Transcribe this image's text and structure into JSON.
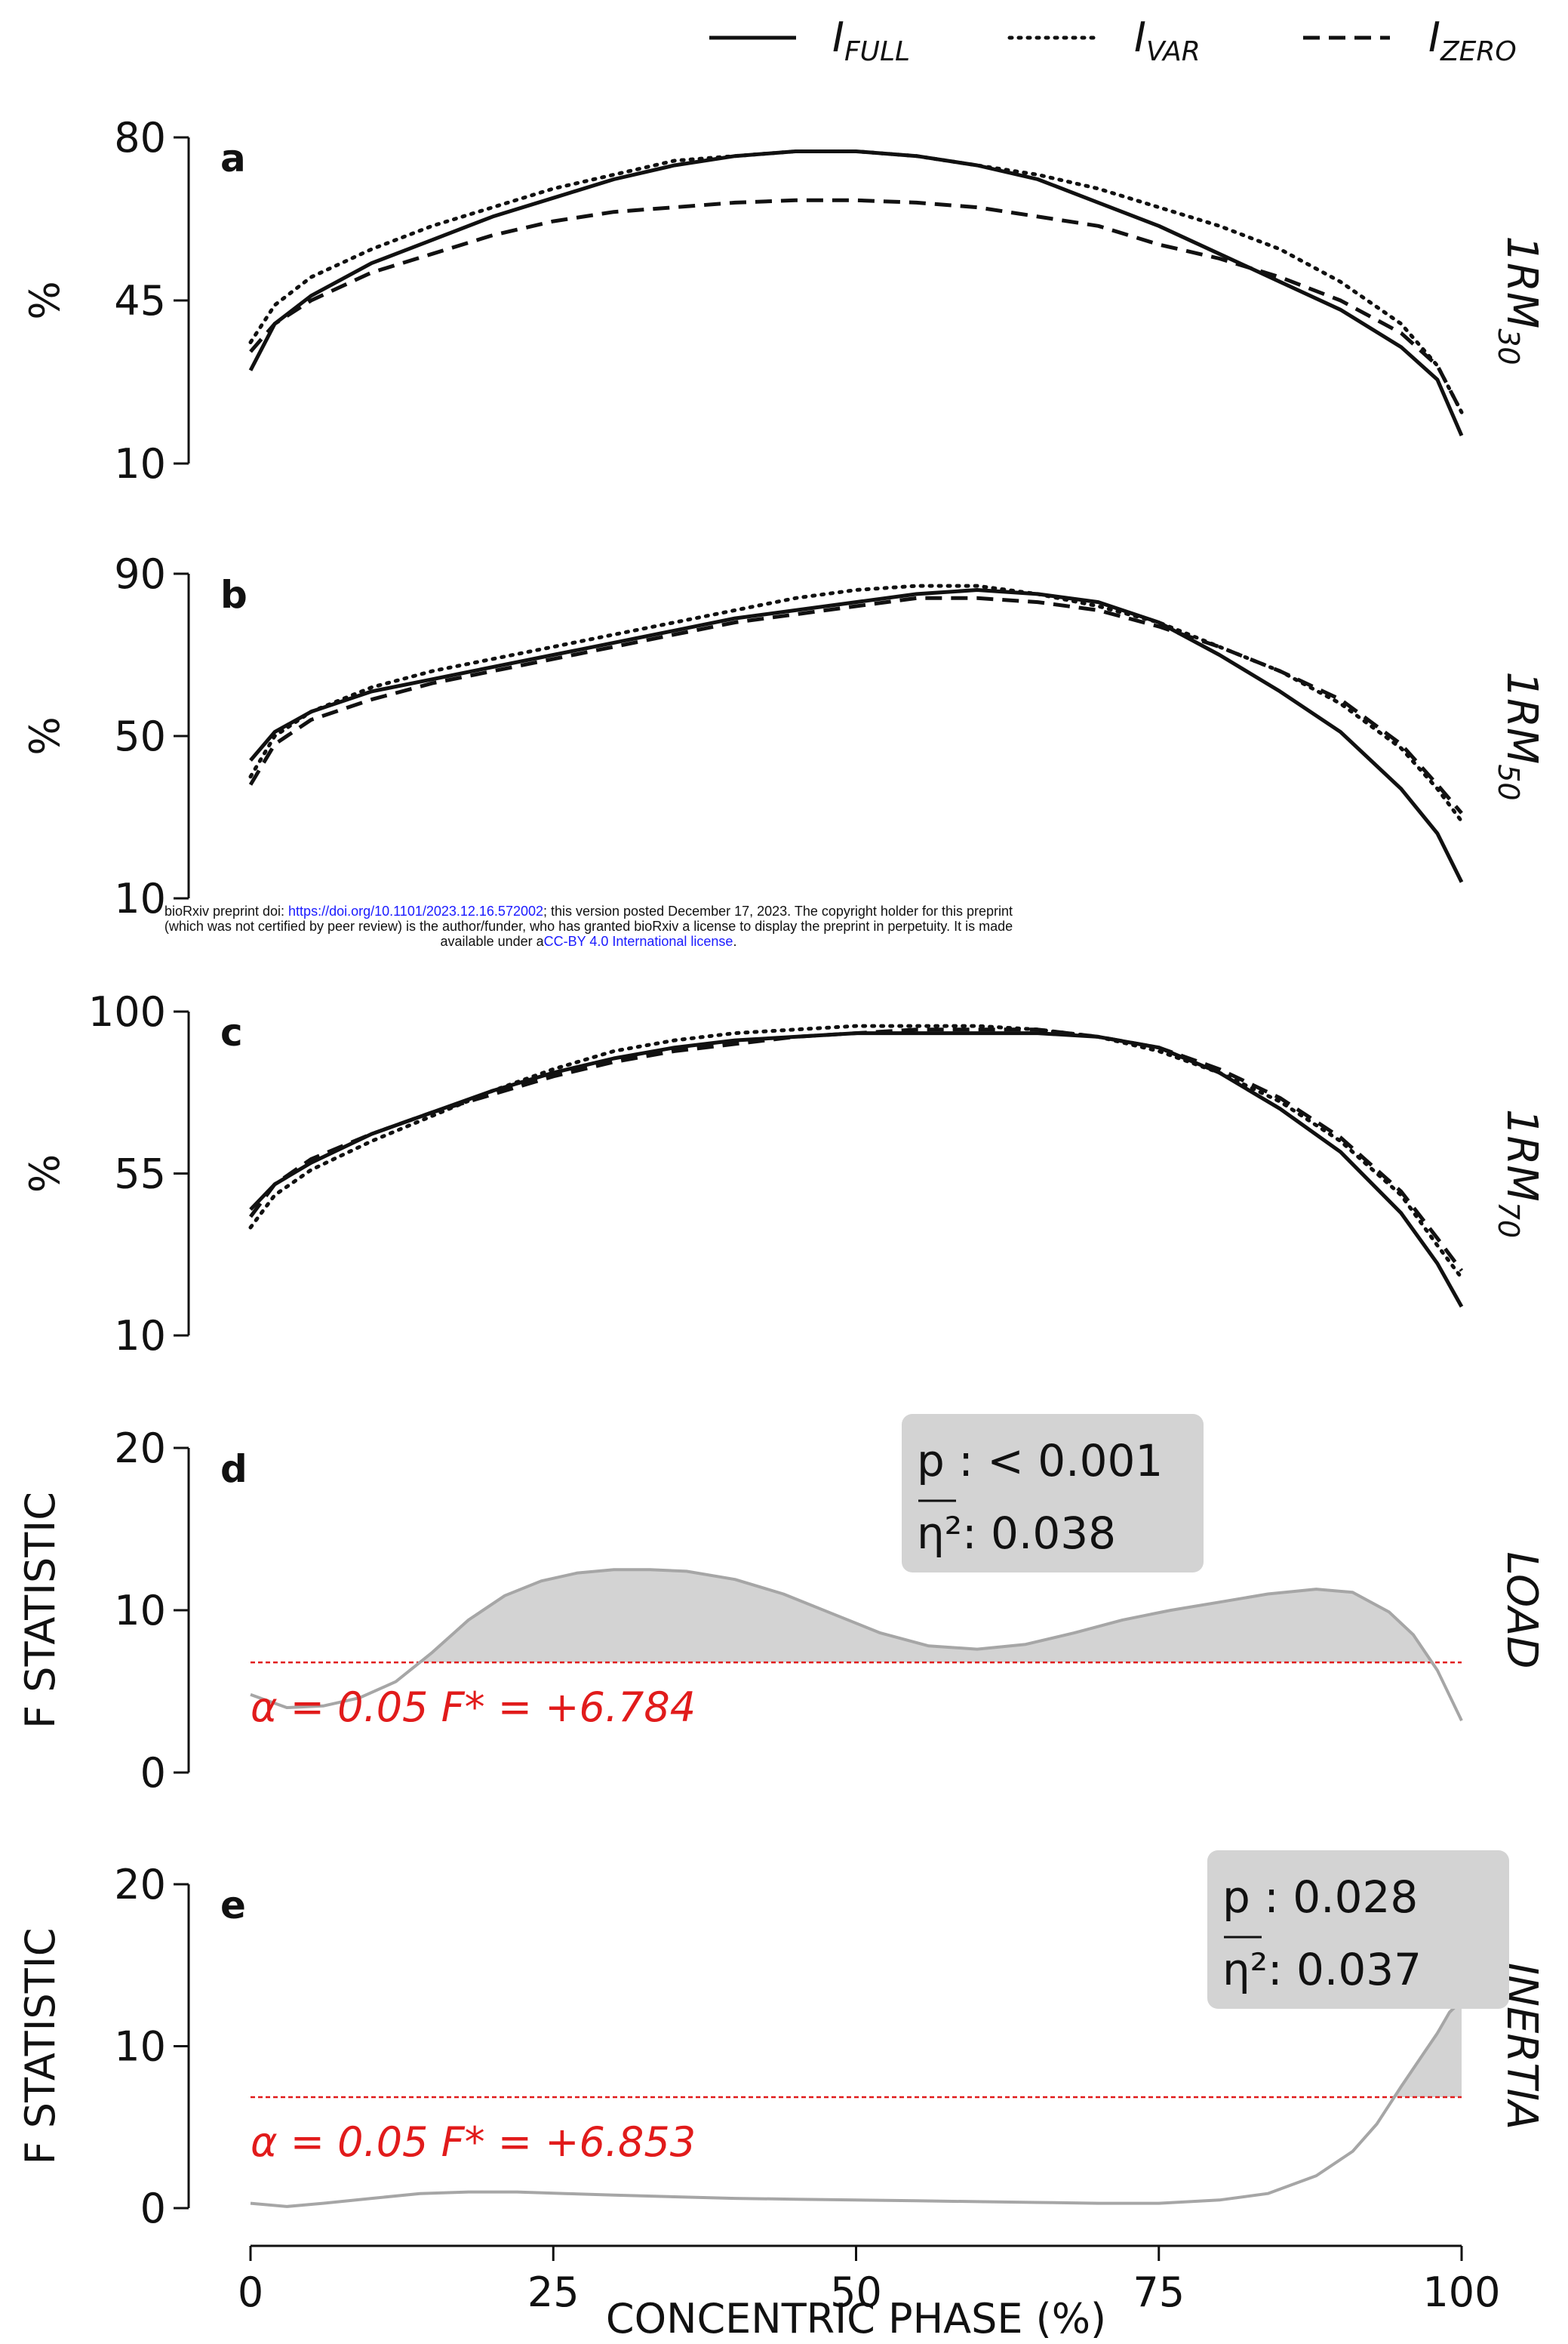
{
  "notice": {
    "line1_a": "bioRxiv preprint doi: ",
    "line1_link": "https://doi.org/10.1101/2023.12.16.572002",
    "line1_b": "; this version posted December 17, 2023. The copyright holder for this preprint",
    "line2": "(which was not certified by peer review) is the author/funder, who has granted bioRxiv a license to display the preprint in perpetuity. It is made",
    "line3_a": "available under a",
    "line3_link": "CC-BY 4.0 International license",
    "line3_b": "."
  },
  "colors": {
    "line": "#111111",
    "fstat": "#a6a6a6",
    "fill": "#d3d3d3",
    "threshold": "#e11b1b",
    "statbox": "#d3d3d3"
  },
  "chart_data": [
    {
      "type": "line",
      "panel": "a",
      "row_label": "1RM",
      "row_label_sub": "30",
      "ylabel": "%",
      "ylim": [
        10,
        80
      ],
      "yticks": [
        10,
        45,
        80
      ],
      "xlim": [
        0,
        100
      ],
      "xticks": [
        0,
        25,
        50,
        75,
        100
      ],
      "series": [
        {
          "name_main": "I",
          "name_sub": "FULL",
          "style": "solid",
          "x": [
            0,
            2,
            5,
            10,
            15,
            20,
            25,
            30,
            35,
            40,
            45,
            50,
            55,
            60,
            65,
            70,
            75,
            80,
            85,
            90,
            95,
            98,
            100
          ],
          "y": [
            30,
            40,
            46,
            53,
            58,
            63,
            67,
            71,
            74,
            76,
            77,
            77,
            76,
            74,
            71,
            66,
            61,
            55,
            49,
            43,
            35,
            28,
            16
          ]
        },
        {
          "name_main": "I",
          "name_sub": "VAR",
          "style": "dotted",
          "x": [
            0,
            2,
            5,
            10,
            15,
            20,
            25,
            30,
            35,
            40,
            45,
            50,
            55,
            60,
            65,
            70,
            75,
            80,
            85,
            90,
            95,
            98,
            100
          ],
          "y": [
            36,
            44,
            50,
            56,
            61,
            65,
            69,
            72,
            75,
            76,
            77,
            77,
            76,
            74,
            72,
            69,
            65,
            61,
            56,
            49,
            40,
            31,
            21
          ]
        },
        {
          "name_main": "I",
          "name_sub": "ZERO",
          "style": "dashed",
          "x": [
            0,
            2,
            5,
            10,
            15,
            20,
            25,
            30,
            35,
            40,
            45,
            50,
            55,
            60,
            65,
            70,
            75,
            80,
            85,
            90,
            95,
            98,
            100
          ],
          "y": [
            34,
            40,
            45,
            51,
            55,
            59,
            62,
            64,
            65,
            66,
            66.5,
            66.5,
            66,
            65,
            63,
            61,
            57,
            54,
            50,
            45,
            38,
            31,
            21
          ]
        }
      ]
    },
    {
      "type": "line",
      "panel": "b",
      "row_label": "1RM",
      "row_label_sub": "50",
      "ylabel": "%",
      "ylim": [
        10,
        90
      ],
      "yticks": [
        10,
        50,
        90
      ],
      "xlim": [
        0,
        100
      ],
      "xticks": [
        0,
        25,
        50,
        75,
        100
      ],
      "series": [
        {
          "name_main": "I",
          "name_sub": "FULL",
          "style": "solid",
          "x": [
            0,
            2,
            5,
            10,
            15,
            20,
            25,
            30,
            35,
            40,
            45,
            50,
            55,
            60,
            65,
            70,
            75,
            80,
            85,
            90,
            95,
            98,
            100
          ],
          "y": [
            44,
            51,
            56,
            61,
            64,
            67,
            70,
            73,
            76,
            79,
            81,
            83,
            85,
            86,
            85,
            83,
            78,
            70,
            61,
            51,
            37,
            26,
            14
          ]
        },
        {
          "name_main": "I",
          "name_sub": "VAR",
          "style": "dotted",
          "x": [
            0,
            2,
            5,
            10,
            15,
            20,
            25,
            30,
            35,
            40,
            45,
            50,
            55,
            60,
            65,
            70,
            75,
            80,
            85,
            90,
            95,
            98,
            100
          ],
          "y": [
            40,
            50,
            56,
            62,
            66,
            69,
            72,
            75,
            78,
            81,
            84,
            86,
            87,
            87,
            85,
            82,
            78,
            72,
            66,
            58,
            47,
            37,
            29
          ]
        },
        {
          "name_main": "I",
          "name_sub": "ZERO",
          "style": "dashed",
          "x": [
            0,
            2,
            5,
            10,
            15,
            20,
            25,
            30,
            35,
            40,
            45,
            50,
            55,
            60,
            65,
            70,
            75,
            80,
            85,
            90,
            95,
            98,
            100
          ],
          "y": [
            38,
            48,
            54,
            59,
            63,
            66,
            69,
            72,
            75,
            78,
            80,
            82,
            84,
            84,
            83,
            81,
            77,
            72,
            66,
            59,
            48,
            38,
            31
          ]
        }
      ]
    },
    {
      "type": "line",
      "panel": "c",
      "row_label": "1RM",
      "row_label_sub": "70",
      "ylabel": "%",
      "ylim": [
        10,
        100
      ],
      "yticks": [
        10,
        55,
        100
      ],
      "xlim": [
        0,
        100
      ],
      "xticks": [
        0,
        25,
        50,
        75,
        100
      ],
      "series": [
        {
          "name_main": "I",
          "name_sub": "FULL",
          "style": "solid",
          "x": [
            0,
            2,
            5,
            10,
            15,
            20,
            25,
            30,
            35,
            40,
            45,
            50,
            55,
            60,
            65,
            70,
            75,
            80,
            85,
            90,
            95,
            98,
            100
          ],
          "y": [
            45,
            52,
            58,
            66,
            72,
            78,
            83,
            87,
            90,
            92,
            93,
            94,
            94,
            94,
            94,
            93,
            90,
            83,
            73,
            61,
            44,
            30,
            18
          ]
        },
        {
          "name_main": "I",
          "name_sub": "VAR",
          "style": "dotted",
          "x": [
            0,
            2,
            5,
            10,
            15,
            20,
            25,
            30,
            35,
            40,
            45,
            50,
            55,
            60,
            65,
            70,
            75,
            80,
            85,
            90,
            95,
            98,
            100
          ],
          "y": [
            40,
            49,
            56,
            64,
            71,
            78,
            84,
            89,
            92,
            94,
            95,
            96,
            96,
            96,
            95,
            93,
            89,
            83,
            75,
            64,
            49,
            35,
            26
          ]
        },
        {
          "name_main": "I",
          "name_sub": "ZERO",
          "style": "dashed",
          "x": [
            0,
            2,
            5,
            10,
            15,
            20,
            25,
            30,
            35,
            40,
            45,
            50,
            55,
            60,
            65,
            70,
            75,
            80,
            85,
            90,
            95,
            98,
            100
          ],
          "y": [
            43,
            52,
            59,
            66,
            72,
            77,
            82,
            86,
            89,
            91,
            93,
            94,
            95,
            95,
            95,
            93,
            90,
            84,
            76,
            65,
            50,
            37,
            28
          ]
        }
      ]
    },
    {
      "type": "area",
      "panel": "d",
      "row_label": "LOAD",
      "ylabel": "F STATISTIC",
      "ylim": [
        0,
        20
      ],
      "yticks": [
        0,
        10,
        20
      ],
      "xlim": [
        0,
        100
      ],
      "xticks": [
        0,
        25,
        50,
        75,
        100
      ],
      "x": [
        0,
        3,
        6,
        9,
        12,
        15,
        18,
        21,
        24,
        27,
        30,
        33,
        36,
        40,
        44,
        48,
        52,
        56,
        60,
        64,
        68,
        72,
        76,
        80,
        84,
        88,
        91,
        94,
        96,
        98,
        100
      ],
      "y": [
        4.8,
        4.0,
        4.1,
        4.6,
        5.6,
        7.4,
        9.4,
        10.9,
        11.8,
        12.3,
        12.5,
        12.5,
        12.4,
        11.9,
        11.0,
        9.8,
        8.6,
        7.8,
        7.6,
        7.9,
        8.6,
        9.4,
        10.0,
        10.5,
        11.0,
        11.3,
        11.1,
        9.9,
        8.5,
        6.3,
        3.2
      ],
      "threshold": 6.784,
      "alpha_text": "α = 0.05",
      "fstar_text": "F* = +6.784",
      "p_label": "p :",
      "p_value": "< 0.001",
      "eta_label": "η²:",
      "eta_value": "0.038"
    },
    {
      "type": "area",
      "panel": "e",
      "row_label": "INERTIA",
      "ylabel": "F STATISTIC",
      "ylim": [
        0,
        20
      ],
      "yticks": [
        0,
        10,
        20
      ],
      "xlim": [
        0,
        100
      ],
      "xticks": [
        0,
        25,
        50,
        75,
        100
      ],
      "xlabel": "CONCENTRIC PHASE (%)",
      "x": [
        0,
        3,
        6,
        10,
        14,
        18,
        22,
        26,
        30,
        35,
        40,
        45,
        50,
        55,
        60,
        65,
        70,
        75,
        80,
        84,
        88,
        91,
        93,
        95,
        96,
        97,
        98,
        99,
        100
      ],
      "y": [
        0.3,
        0.1,
        0.3,
        0.6,
        0.9,
        1.0,
        1.0,
        0.9,
        0.8,
        0.7,
        0.6,
        0.55,
        0.5,
        0.45,
        0.4,
        0.35,
        0.3,
        0.3,
        0.5,
        0.9,
        2.0,
        3.5,
        5.2,
        7.5,
        8.6,
        9.7,
        10.8,
        12.1,
        12.8
      ],
      "threshold": 6.853,
      "alpha_text": "α = 0.05",
      "fstar_text": "F* = +6.853",
      "p_label": "p :",
      "p_value": "0.028",
      "eta_label": "η²:",
      "eta_value": "0.037"
    }
  ]
}
